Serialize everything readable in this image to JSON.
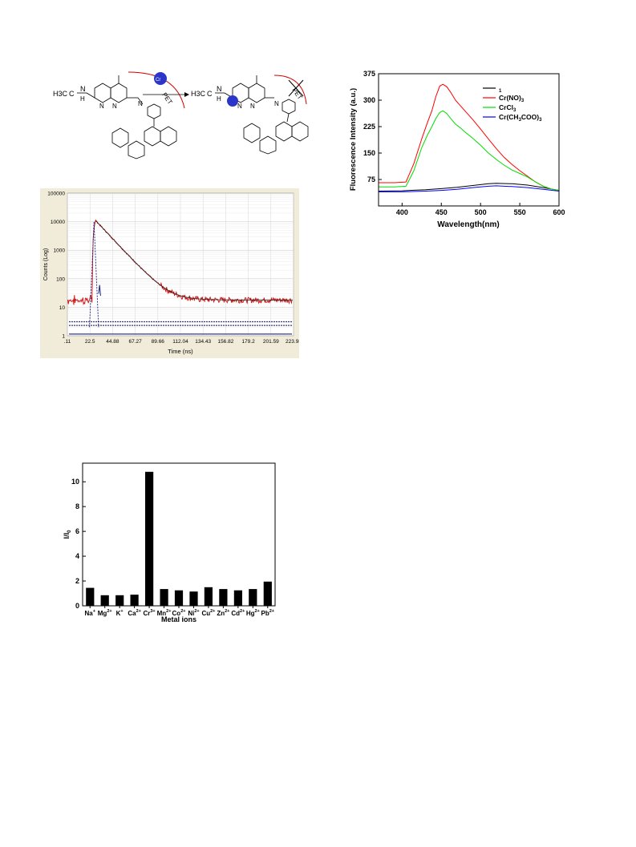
{
  "scheme": {
    "left_labels": [
      "H3C",
      "C",
      "N",
      "H",
      "N",
      "N",
      "N"
    ],
    "right_labels": [
      "H3C",
      "C",
      "N",
      "H",
      "N",
      "N",
      "N"
    ],
    "pet_label": "PET",
    "metal_label": "Cr"
  },
  "chart_data": [
    {
      "id": "fluorescence",
      "type": "line",
      "xlabel": "Wavelength(nm)",
      "ylabel": "Fluorescence Intensity (a.u.)",
      "xlim": [
        370,
        600
      ],
      "ylim": [
        0,
        375
      ],
      "xticks": [
        "400",
        "450",
        "500",
        "550",
        "600"
      ],
      "yticks": [
        "75",
        "150",
        "225",
        "300",
        "375"
      ],
      "legend_position": "top-right",
      "series": [
        {
          "name": "1",
          "color": "#000000",
          "x": [
            370,
            400,
            430,
            450,
            470,
            490,
            510,
            520,
            540,
            560,
            580,
            600
          ],
          "y": [
            42,
            43,
            46,
            49,
            53,
            58,
            63,
            64,
            63,
            59,
            52,
            44
          ]
        },
        {
          "name": "Cr(NO)3",
          "color": "#ff0000",
          "x": [
            370,
            390,
            405,
            415,
            425,
            432,
            438,
            443,
            448,
            452,
            457,
            462,
            468,
            474,
            480,
            490,
            500,
            510,
            520,
            530,
            540,
            550,
            560,
            570,
            580,
            590,
            600
          ],
          "y": [
            66,
            66,
            68,
            120,
            190,
            235,
            270,
            310,
            340,
            345,
            338,
            322,
            300,
            285,
            270,
            245,
            218,
            190,
            163,
            138,
            118,
            100,
            84,
            68,
            56,
            48,
            44
          ]
        },
        {
          "name": "CrCl3",
          "color": "#00dd00",
          "x": [
            370,
            390,
            405,
            415,
            425,
            432,
            438,
            443,
            448,
            452,
            457,
            462,
            468,
            474,
            480,
            490,
            500,
            510,
            520,
            530,
            540,
            550,
            560,
            570,
            580,
            590,
            600
          ],
          "y": [
            54,
            54,
            56,
            100,
            165,
            200,
            225,
            248,
            265,
            270,
            262,
            248,
            232,
            222,
            210,
            192,
            172,
            150,
            132,
            116,
            102,
            92,
            82,
            68,
            56,
            48,
            44
          ]
        },
        {
          "name": "Cr(CH3COO)3",
          "color": "#0000ff",
          "x": [
            370,
            400,
            430,
            450,
            470,
            490,
            510,
            520,
            540,
            560,
            580,
            600
          ],
          "y": [
            40,
            40,
            42,
            44,
            47,
            52,
            56,
            57,
            55,
            52,
            47,
            42
          ]
        }
      ]
    },
    {
      "id": "decay",
      "type": "line",
      "xlabel": "Time (ns)",
      "ylabel": "Counts (Log)",
      "yscale": "log",
      "xlim": [
        0.11,
        223.98
      ],
      "ylim": [
        1,
        100000
      ],
      "xticks": [
        ".11",
        "22.5",
        "44.88",
        "67.27",
        "89.66",
        "112.04",
        "134.43",
        "156.82",
        "179.2",
        "201.59",
        "223.98"
      ],
      "yticks": [
        "1",
        "10",
        "100",
        "1000",
        "10000",
        "100000"
      ],
      "grid": true
    },
    {
      "id": "selectivity",
      "type": "bar",
      "xlabel": "Metal ions",
      "ylabel": "I/I0",
      "ylim": [
        0,
        11.5
      ],
      "yticks": [
        "0",
        "2",
        "4",
        "6",
        "8",
        "10"
      ],
      "categories": [
        "Na+",
        "Mg2+",
        "K+",
        "Ca2+",
        "Cr3+",
        "Mn2+",
        "Co2+",
        "Ni2+",
        "Cu2+",
        "Zn2+",
        "Cd2+",
        "Hg2+",
        "Pb2+"
      ],
      "values": [
        1.45,
        0.85,
        0.85,
        0.9,
        10.8,
        1.35,
        1.25,
        1.15,
        1.5,
        1.35,
        1.25,
        1.35,
        1.95
      ]
    }
  ]
}
